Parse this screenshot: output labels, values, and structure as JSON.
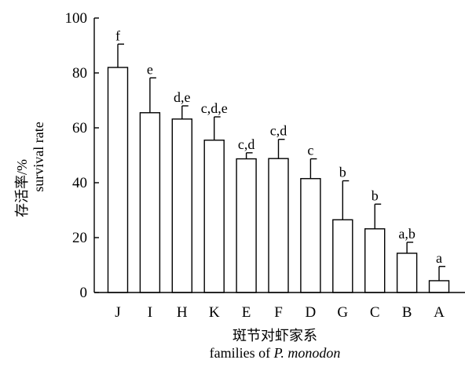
{
  "chart_data": {
    "type": "bar",
    "categories": [
      "J",
      "I",
      "H",
      "K",
      "E",
      "F",
      "D",
      "G",
      "C",
      "B",
      "A"
    ],
    "values": [
      82,
      65.5,
      63.2,
      55.5,
      48.7,
      48.8,
      41.5,
      26.5,
      23.2,
      14.3,
      4.3
    ],
    "errors": [
      8.5,
      12.7,
      4.8,
      8.5,
      2.2,
      7,
      7.2,
      14.2,
      9,
      4,
      5.2
    ],
    "significance": [
      "f",
      "e",
      "d,e",
      "c,d,e",
      "c,d",
      "c,d",
      "c",
      "b",
      "b",
      "a,b",
      "a"
    ],
    "ylim": [
      0,
      100
    ],
    "yticks": [
      0,
      20,
      40,
      60,
      80,
      100
    ],
    "ylabel_line1": "存活率/%",
    "ylabel_line2": "survival rate",
    "xlabel_line1": "斑节对虾家系",
    "xlabel_line2_prefix": "families of ",
    "xlabel_line2_italic": "P. monodon",
    "grid": false,
    "bar_fill": "#ffffff",
    "bar_stroke": "#000000"
  }
}
